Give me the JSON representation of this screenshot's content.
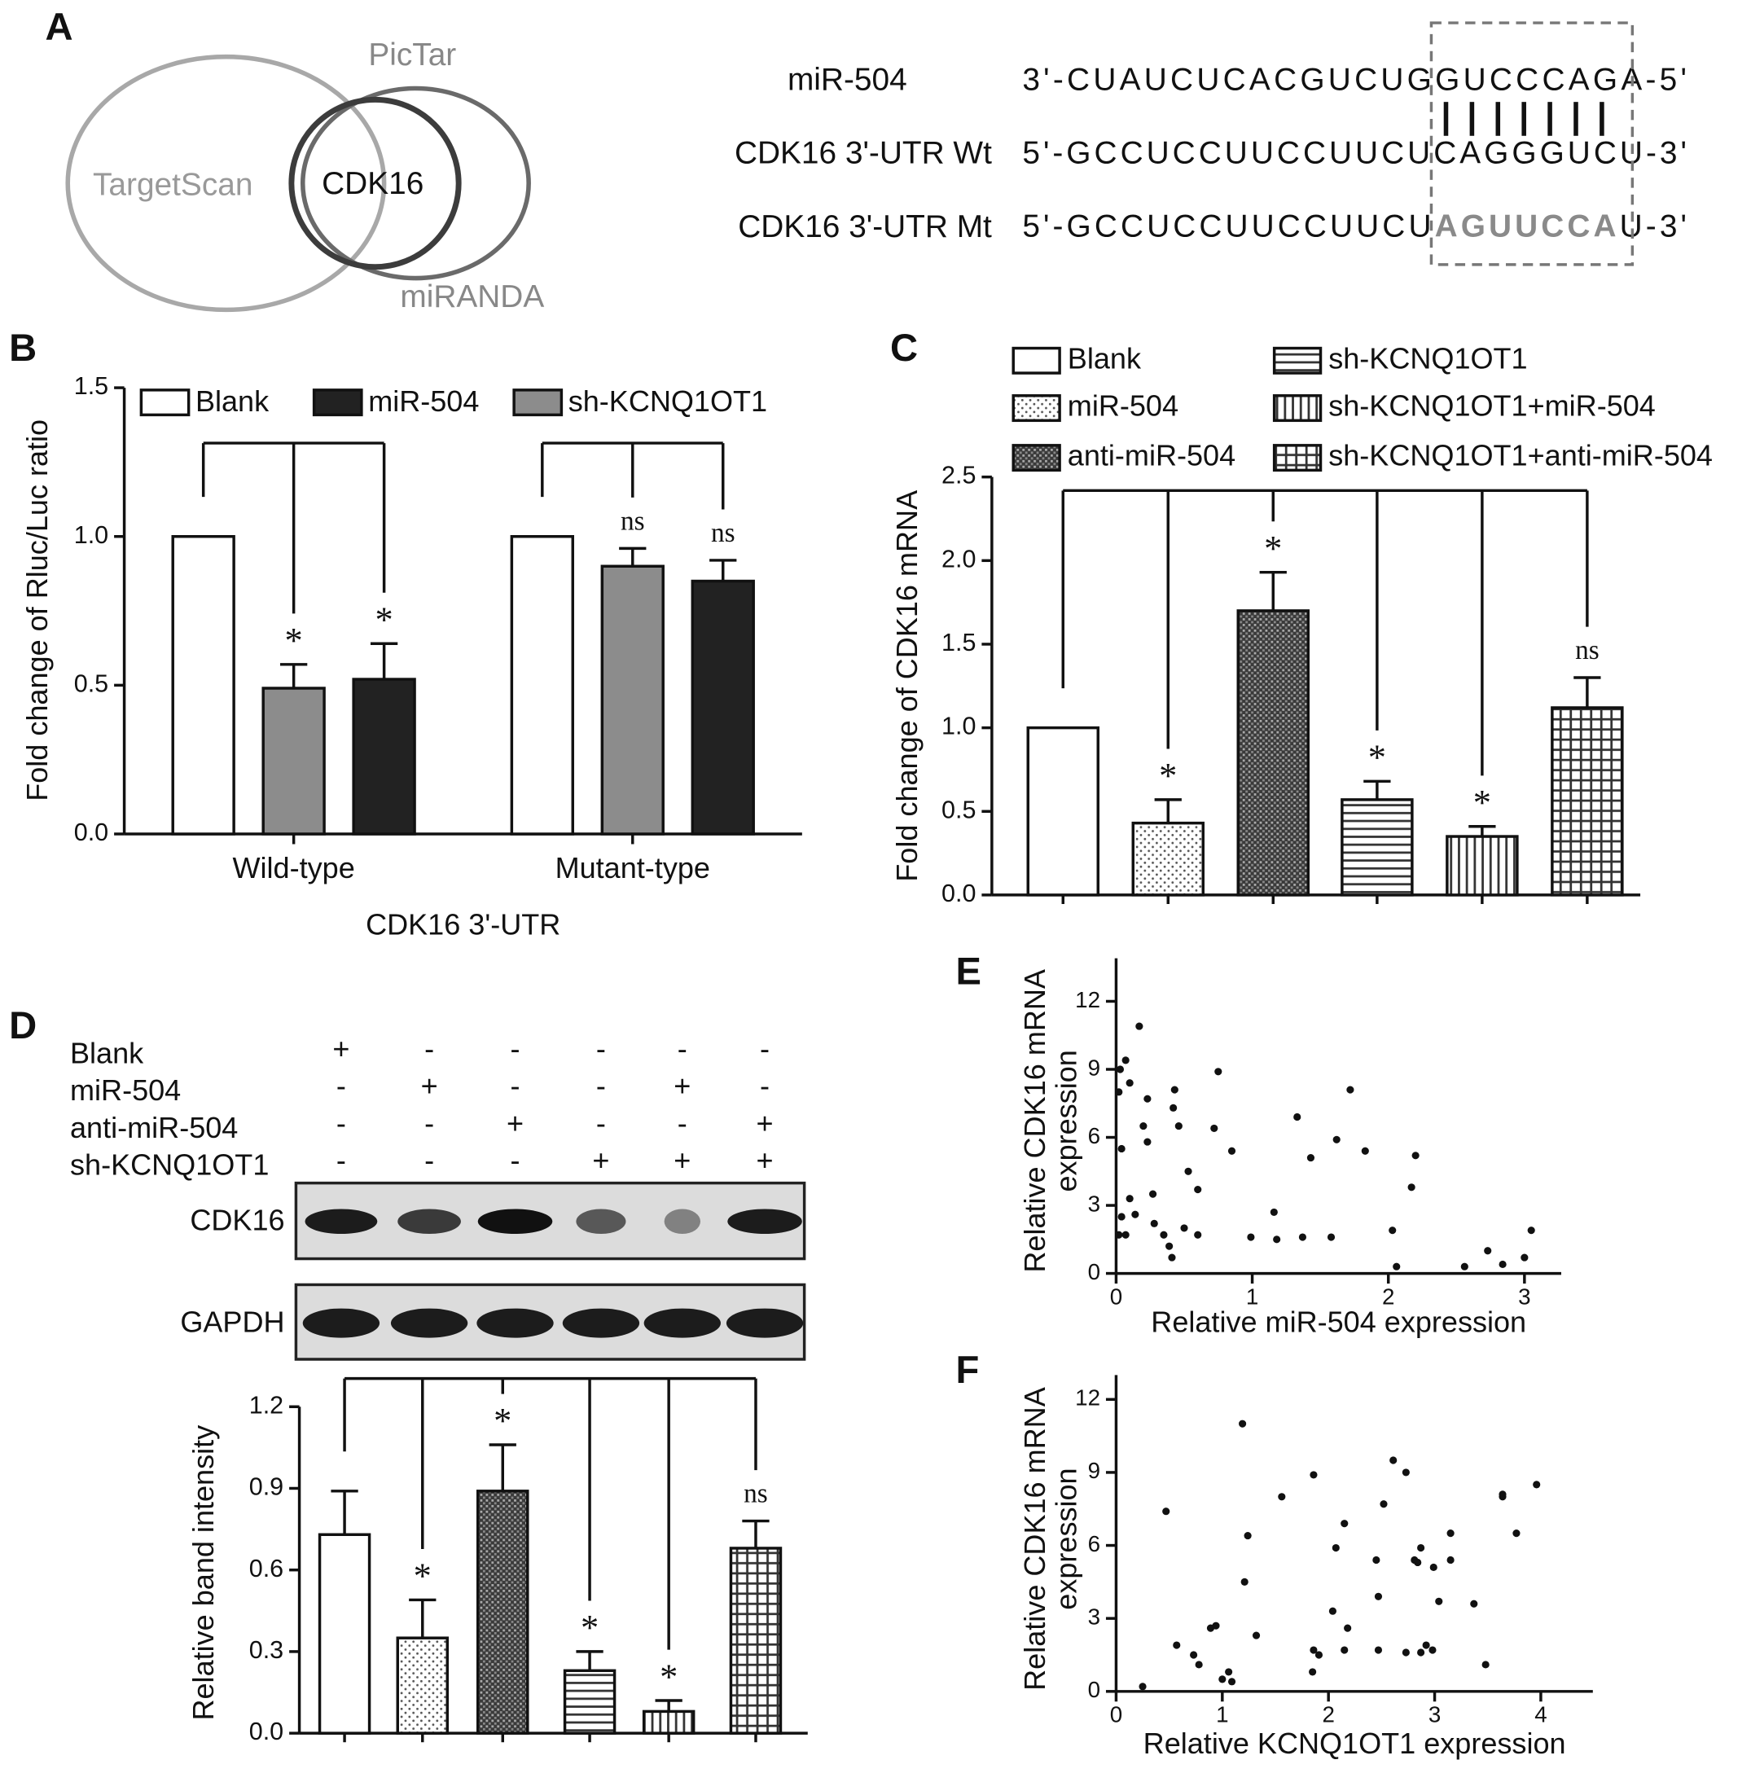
{
  "panel_labels": [
    "A",
    "B",
    "C",
    "D",
    "E",
    "F"
  ],
  "panel_a": {
    "venn": {
      "sets": [
        "TargetScan",
        "PicTar",
        "miRANDA"
      ],
      "intersection": "CDK16"
    },
    "alignment": [
      {
        "label": "miR-504",
        "sequence": [
          "3'-CUAUCUCACGUCUGGUCCCAGA-5'"
        ]
      },
      {
        "label": "CDK16 3'-UTR Wt",
        "sequence": [
          "5'-GCCUCCUUCCUUCUCAGGGUCU-3'"
        ]
      },
      {
        "label": "CDK16 3'-UTR Mt",
        "sequence": [
          "5'-GCCUCCUUCCUUCU",
          "AGUUCCA",
          "U-3'"
        ]
      }
    ]
  },
  "panel_d_blot": {
    "treatments": [
      {
        "label": "Blank",
        "signs": [
          "+",
          "-",
          "-",
          "-",
          "-",
          "-"
        ]
      },
      {
        "label": "miR-504",
        "signs": [
          "-",
          "+",
          "-",
          "-",
          "+",
          "-"
        ]
      },
      {
        "label": "anti-miR-504",
        "signs": [
          "-",
          "-",
          "+",
          "-",
          "-",
          "+"
        ]
      },
      {
        "label": "sh-KCNQ1OT1",
        "signs": [
          "-",
          "-",
          "-",
          "+",
          "+",
          "+"
        ]
      }
    ],
    "bands": [
      "CDK16",
      "GAPDH"
    ]
  },
  "chart_data": [
    {
      "type": "grouped_bar",
      "categories": [
        "Wild-type",
        "Mutant-type"
      ],
      "xlabel": "CDK16 3'-UTR",
      "ylabel": "Fold change of Rluc/Luc ratio",
      "ylim": [
        0,
        1.5
      ],
      "yticks": [
        {
          "value": 0,
          "label": "0.0"
        },
        0.5,
        {
          "value": 1,
          "label": "1.0"
        },
        1.5
      ],
      "series": [
        {
          "name": "Blank",
          "color": "#ffffff",
          "legend_color": "#ffffff",
          "values": [
            1,
            1
          ],
          "errors": [
            null,
            null
          ],
          "annotations": [
            null,
            null
          ]
        },
        {
          "name": "miR-504",
          "color": "#8c8c8c",
          "legend_color": "#222222",
          "values": [
            0.49,
            0.9
          ],
          "errors": [
            0.08,
            0.06
          ],
          "annotations": [
            "*",
            "ns"
          ]
        },
        {
          "name": "sh-KCNQ1OT1",
          "color": "#222222",
          "legend_color": "#8c8c8c",
          "values": [
            0.52,
            0.85
          ],
          "errors": [
            0.12,
            0.07
          ],
          "annotations": [
            "*",
            "ns"
          ]
        }
      ]
    },
    {
      "type": "bar",
      "ylabel": "Fold change of CDK16 mRNA",
      "ylim": [
        0,
        2.5
      ],
      "yticks": [
        {
          "value": 0,
          "label": "0.0"
        },
        0.5,
        {
          "value": 1,
          "label": "1.0"
        },
        1.5,
        {
          "value": 2,
          "label": "2.0"
        },
        2.5
      ],
      "labels": [
        "Blank",
        "miR-504",
        "anti-miR-504",
        "sh-KCNQ1OT1",
        "sh-KCNQ1OT1+miR-504",
        "sh-KCNQ1OT1+anti-miR-504"
      ],
      "values": [
        1,
        0.43,
        1.7,
        0.57,
        0.35,
        1.12
      ],
      "errors": [
        null,
        0.14,
        0.23,
        0.11,
        0.06,
        0.18
      ],
      "patterns": [
        "none",
        "dots",
        "crosshatch",
        "hlines",
        "vlines",
        "grid"
      ],
      "annotations": [
        null,
        "*",
        "*",
        "*",
        "*",
        "ns"
      ]
    },
    {
      "type": "bar",
      "ylabel": "Relative band intensity",
      "ylim": [
        0,
        1.2
      ],
      "yticks": [
        {
          "value": 0,
          "label": "0.0"
        },
        0.3,
        0.6,
        0.9,
        1.2
      ],
      "values": [
        0.73,
        0.35,
        0.89,
        0.23,
        0.08,
        0.68
      ],
      "errors": [
        0.16,
        0.14,
        0.17,
        0.07,
        0.04,
        0.1
      ],
      "patterns": [
        "none",
        "dots",
        "crosshatch",
        "hlines",
        "vlines",
        "grid"
      ],
      "annotations": [
        null,
        "*",
        "*",
        "*",
        "*",
        "ns"
      ]
    },
    {
      "type": "scatter",
      "xlabel": "Relative miR-504 expression",
      "ylabel": [
        "Relative CDK16 mRNA",
        "expression"
      ],
      "xlim": [
        0,
        3.27
      ],
      "ylim": [
        0,
        13.9
      ],
      "xticks": [
        0,
        1,
        2,
        3
      ],
      "yticks": [
        0,
        3,
        6,
        9,
        12
      ],
      "x": [
        0.02,
        0.03,
        0.07,
        0.17,
        0.1,
        0.23,
        0.2,
        0.23,
        0.04,
        0.1,
        0.04,
        0.14,
        0.02,
        0.07,
        0.27,
        0.28,
        0.35,
        0.39,
        0.41,
        0.43,
        0.42,
        0.46,
        0.53,
        0.6,
        0.5,
        0.6,
        0.75,
        0.72,
        0.85,
        0.99,
        1.16,
        1.18,
        1.33,
        1.37,
        1.43,
        1.58,
        1.62,
        1.72,
        1.83,
        2.03,
        2.06,
        2.17,
        2.2,
        2.56,
        2.73,
        2.84,
        3.0,
        3.05
      ],
      "values": [
        8.0,
        9.0,
        9.4,
        10.9,
        8.4,
        7.7,
        6.5,
        5.8,
        5.5,
        3.3,
        2.5,
        2.6,
        1.7,
        1.7,
        3.5,
        2.2,
        1.7,
        1.2,
        0.7,
        8.1,
        7.3,
        6.5,
        4.5,
        3.7,
        2.0,
        1.7,
        8.9,
        6.4,
        5.4,
        1.6,
        2.7,
        1.5,
        6.9,
        1.6,
        5.1,
        1.6,
        5.9,
        8.1,
        5.4,
        1.9,
        0.3,
        3.8,
        5.2,
        0.3,
        1.0,
        0.4,
        0.7,
        1.9
      ]
    },
    {
      "type": "scatter",
      "xlabel": "Relative KCNQ1OT1 expression",
      "ylabel": [
        "Relative CDK16 mRNA",
        "expression"
      ],
      "xlim": [
        0,
        4.49
      ],
      "ylim": [
        0,
        13
      ],
      "xticks": [
        0,
        1,
        2,
        3,
        4
      ],
      "yticks": [
        0,
        3,
        6,
        9,
        12
      ],
      "x": [
        0.25,
        0.47,
        0.57,
        0.73,
        0.78,
        0.89,
        0.94,
        1.0,
        1.06,
        1.09,
        1.19,
        1.24,
        1.21,
        1.32,
        1.56,
        1.86,
        1.85,
        1.86,
        1.91,
        2.04,
        2.07,
        2.15,
        2.18,
        2.15,
        2.45,
        2.47,
        2.52,
        2.47,
        2.61,
        2.73,
        2.73,
        2.81,
        2.87,
        2.84,
        2.92,
        2.87,
        2.98,
        2.99,
        3.04,
        3.15,
        3.15,
        3.37,
        3.48,
        3.64,
        3.64,
        3.77,
        3.96
      ],
      "values": [
        0.2,
        7.4,
        1.9,
        1.5,
        1.1,
        2.6,
        2.7,
        0.5,
        0.8,
        0.4,
        11.0,
        6.4,
        4.5,
        2.3,
        8.0,
        8.9,
        0.8,
        1.7,
        1.5,
        3.3,
        5.9,
        6.9,
        2.6,
        1.7,
        5.4,
        3.9,
        7.7,
        1.7,
        9.5,
        9.0,
        1.6,
        5.4,
        5.9,
        5.3,
        1.9,
        1.6,
        1.7,
        5.1,
        3.7,
        5.4,
        6.5,
        3.6,
        1.1,
        8.0,
        8.1,
        6.5,
        8.5
      ]
    }
  ]
}
